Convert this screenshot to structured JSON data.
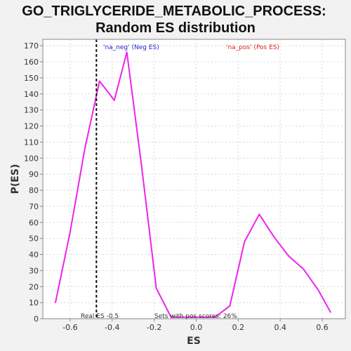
{
  "chart_data": {
    "type": "line",
    "title_line1": "GO_TRIGLYCERIDE_METABOLIC_PROCESS:",
    "title_line2": "Random ES distribution",
    "xlabel": "ES",
    "ylabel": "P(ES)",
    "xlim": [
      -0.73,
      0.71
    ],
    "ylim": [
      0,
      174
    ],
    "x_ticks": [
      -0.6,
      -0.4,
      -0.2,
      0.0,
      0.2,
      0.4,
      0.6
    ],
    "x_tick_labels": [
      "-0.6",
      "-0.4",
      "-0.2",
      "0.0",
      "0.2",
      "0.4",
      "0.6"
    ],
    "y_ticks": [
      0,
      10,
      20,
      30,
      40,
      50,
      60,
      70,
      80,
      90,
      100,
      110,
      120,
      130,
      140,
      150,
      160,
      170
    ],
    "y_tick_labels": [
      "0",
      "10",
      "20",
      "30",
      "40",
      "50",
      "60",
      "70",
      "80",
      "90",
      "100",
      "110",
      "120",
      "130",
      "140",
      "150",
      "160",
      "170"
    ],
    "grid": true,
    "series": [
      {
        "color": "#ee22ee",
        "x": [
          -0.67,
          -0.6,
          -0.53,
          -0.46,
          -0.39,
          -0.33,
          -0.26,
          -0.19,
          -0.12,
          -0.05,
          0.02,
          0.09,
          0.16,
          0.23,
          0.3,
          0.37,
          0.44,
          0.51,
          0.58,
          0.64
        ],
        "y": [
          10,
          54,
          106,
          148,
          136,
          166,
          95,
          19,
          1,
          1,
          1,
          1,
          8,
          48,
          65,
          51,
          39,
          31,
          18,
          4
        ]
      }
    ],
    "real_es": -0.475,
    "legend_neg": "'na_neg' (Neg ES)",
    "legend_pos": "'na_pos' (Pos ES)",
    "annotation_real_es": "Real ES -0.5",
    "annotation_pos_scores": "Sets with pos scores: 26%",
    "colors": {
      "line": "#ee22ee",
      "real_es_line": "#111111",
      "grid": "#d8d8d8",
      "plot_bg": "#ffffff",
      "page_bg": "#f2f2f2"
    }
  }
}
